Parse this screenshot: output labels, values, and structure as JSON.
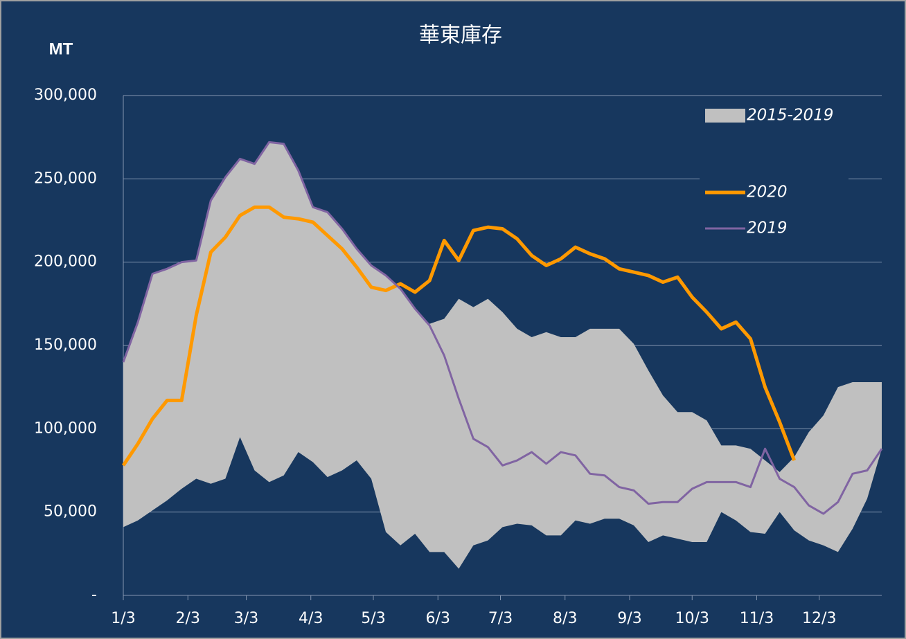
{
  "chart_data": {
    "type": "line",
    "title": "華東庫存",
    "y_label": "MT",
    "x": [
      0,
      7,
      14,
      21,
      28,
      35,
      42,
      49,
      56,
      63,
      70,
      77,
      84,
      91,
      98,
      105,
      112,
      119,
      126,
      133,
      140,
      147,
      154,
      161,
      168,
      175,
      182,
      189,
      196,
      203,
      210,
      217,
      224,
      231,
      238,
      245,
      252,
      259,
      266,
      273,
      280,
      287,
      294,
      301,
      308,
      315,
      322,
      329,
      336,
      343,
      350,
      357,
      364
    ],
    "xlim": [
      0,
      364
    ],
    "xticks": [
      {
        "value": 0,
        "label": "1/3"
      },
      {
        "value": 31,
        "label": "2/3"
      },
      {
        "value": 59,
        "label": "3/3"
      },
      {
        "value": 90,
        "label": "4/3"
      },
      {
        "value": 120,
        "label": "5/3"
      },
      {
        "value": 151,
        "label": "6/3"
      },
      {
        "value": 181,
        "label": "7/3"
      },
      {
        "value": 212,
        "label": "8/3"
      },
      {
        "value": 243,
        "label": "9/3"
      },
      {
        "value": 273,
        "label": "10/3"
      },
      {
        "value": 304,
        "label": "11/3"
      },
      {
        "value": 334,
        "label": "12/3"
      }
    ],
    "ylim": [
      0,
      300000
    ],
    "yticks": [
      {
        "value": 0,
        "label": "-"
      },
      {
        "value": 50000,
        "label": "50,000"
      },
      {
        "value": 100000,
        "label": "100,000"
      },
      {
        "value": 150000,
        "label": "150,000"
      },
      {
        "value": 200000,
        "label": "200,000"
      },
      {
        "value": 250000,
        "label": "250,000"
      },
      {
        "value": 300000,
        "label": "300,000"
      }
    ],
    "grid": true,
    "legend": "upper right",
    "series": [
      {
        "name": "2015-2019",
        "color": "#c0c0c0",
        "type": "range",
        "high": [
          140000,
          164000,
          193000,
          196000,
          200000,
          201000,
          237000,
          251000,
          262000,
          259000,
          272000,
          271000,
          255000,
          233000,
          230000,
          220000,
          208000,
          198000,
          192000,
          184000,
          172000,
          163000,
          166000,
          178000,
          173000,
          178000,
          170000,
          160000,
          155000,
          158000,
          155000,
          155000,
          160000,
          160000,
          160000,
          151000,
          135000,
          120000,
          110000,
          110000,
          105000,
          90000,
          90000,
          88000,
          81000,
          74000,
          83000,
          98000,
          108000,
          125000,
          128000,
          128000,
          128000
        ],
        "low": [
          41000,
          45000,
          51000,
          57000,
          64000,
          70000,
          67000,
          70000,
          95000,
          75000,
          68000,
          72000,
          86000,
          80000,
          71000,
          75000,
          81000,
          70000,
          38000,
          30000,
          37000,
          26000,
          26000,
          16000,
          30000,
          33000,
          41000,
          43000,
          42000,
          36000,
          36000,
          45000,
          43000,
          46000,
          46000,
          42000,
          32000,
          36000,
          34000,
          32000,
          32000,
          50000,
          45000,
          38000,
          37000,
          50000,
          39000,
          33000,
          30000,
          26000,
          40000,
          58000,
          88000
        ]
      },
      {
        "name": "2020",
        "color": "#ff9900",
        "width": 5,
        "values": [
          78000,
          91000,
          106000,
          117000,
          117000,
          168000,
          206000,
          215000,
          228000,
          233000,
          233000,
          227000,
          226000,
          224000,
          216000,
          208000,
          197000,
          185000,
          183000,
          187000,
          182000,
          189000,
          213000,
          201000,
          219000,
          221000,
          220000,
          214000,
          204000,
          198000,
          202000,
          209000,
          205000,
          202000,
          196000,
          194000,
          192000,
          188000,
          191000,
          179000,
          170000,
          160000,
          164000,
          154000,
          125000,
          104000,
          81000,
          null,
          null,
          null,
          null,
          null,
          null
        ]
      },
      {
        "name": "2019",
        "color": "#8064a2",
        "width": 3,
        "values": [
          140000,
          164000,
          193000,
          196000,
          200000,
          201000,
          237000,
          251000,
          262000,
          259000,
          272000,
          271000,
          255000,
          233000,
          230000,
          220000,
          208000,
          198000,
          192000,
          184000,
          172000,
          162000,
          144000,
          118000,
          94000,
          89000,
          78000,
          81000,
          86000,
          79000,
          86000,
          84000,
          73000,
          72000,
          65000,
          63000,
          55000,
          56000,
          56000,
          64000,
          68000,
          68000,
          68000,
          65000,
          88000,
          70000,
          65000,
          54000,
          49000,
          56000,
          73000,
          75000,
          88000
        ]
      }
    ]
  }
}
